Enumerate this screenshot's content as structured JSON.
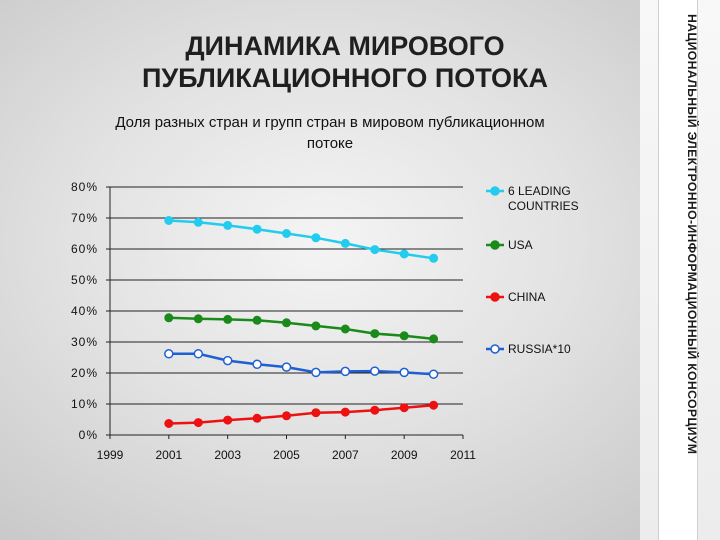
{
  "side_label": "НАЦИОНАЛЬНЫЙ ЭЛЕКТРОННО-ИНФОРМАЦИОННЫЙ КОНСОРЦИУМ",
  "slide_title": "ДИНАМИКА МИРОВОГО ПУБЛИКАЦИОННОГО ПОТОКА",
  "chart_data": {
    "type": "line",
    "title": "Доля разных стран и групп стран в мировом публикационном потоке",
    "xlabel": "",
    "ylabel": "",
    "x_ticks": [
      "1999",
      "2001",
      "2003",
      "2005",
      "2007",
      "2009",
      "2011"
    ],
    "y_ticks": [
      "0%",
      "10%",
      "20%",
      "30%",
      "40%",
      "50%",
      "60%",
      "70%",
      "80%"
    ],
    "xlim": [
      1999,
      2011
    ],
    "ylim": [
      0,
      80
    ],
    "grid": true,
    "legend_position": "right",
    "x": [
      2001,
      2002,
      2003,
      2004,
      2005,
      2006,
      2007,
      2008,
      2009,
      2010
    ],
    "series": [
      {
        "name": "6 LEADING COUNTRIES",
        "color": "#22ccee",
        "marker": "filled",
        "values": [
          69.2,
          68.6,
          67.6,
          66.4,
          65.0,
          63.6,
          61.8,
          59.8,
          58.4,
          57.0
        ]
      },
      {
        "name": "USA",
        "color": "#1a8a1a",
        "marker": "filled",
        "values": [
          37.8,
          37.5,
          37.3,
          37.0,
          36.2,
          35.2,
          34.2,
          32.7,
          32.0,
          31.0
        ]
      },
      {
        "name": "CHINA",
        "color": "#ee1111",
        "marker": "filled",
        "values": [
          3.7,
          4.0,
          4.8,
          5.4,
          6.2,
          7.2,
          7.4,
          8.0,
          8.8,
          9.6
        ]
      },
      {
        "name": "RUSSIA*10",
        "color": "#1f5fd4",
        "marker": "hollow",
        "values": [
          26.2,
          26.2,
          24.0,
          22.8,
          21.9,
          20.2,
          20.5,
          20.6,
          20.2,
          19.6
        ]
      }
    ]
  }
}
